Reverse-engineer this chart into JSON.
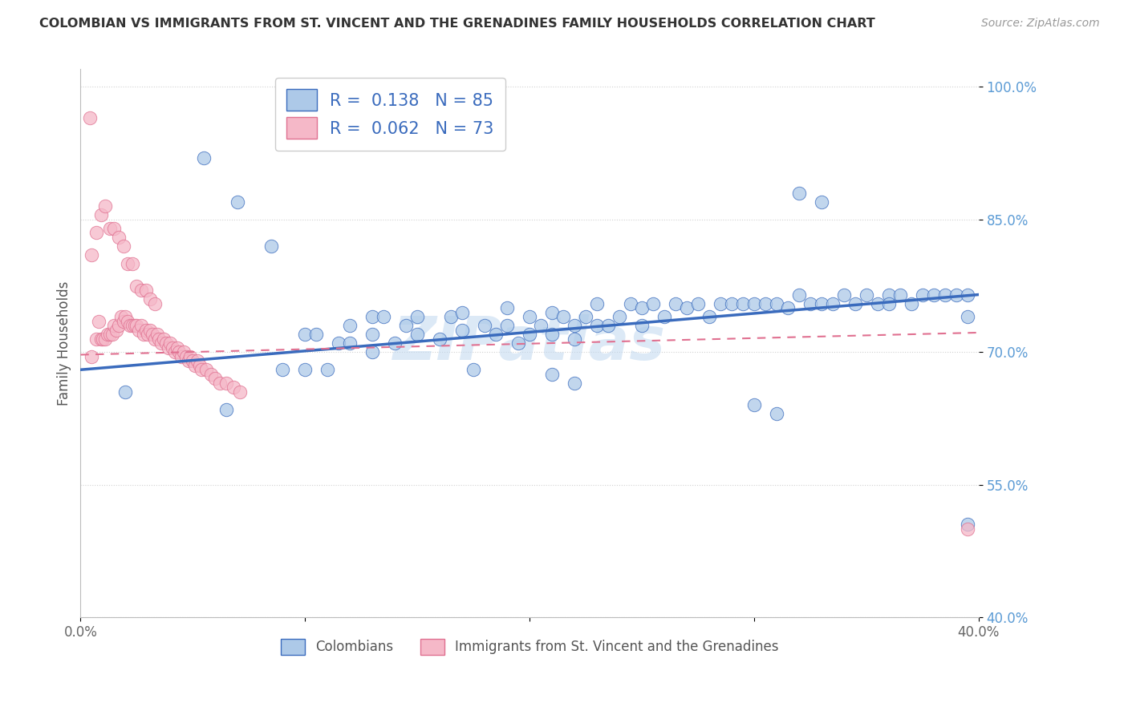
{
  "title": "COLOMBIAN VS IMMIGRANTS FROM ST. VINCENT AND THE GRENADINES FAMILY HOUSEHOLDS CORRELATION CHART",
  "source": "Source: ZipAtlas.com",
  "ylabel": "Family Households",
  "xlim": [
    0.0,
    0.4
  ],
  "ylim": [
    0.4,
    1.02
  ],
  "ytick_labels": [
    "40.0%",
    "55.0%",
    "70.0%",
    "85.0%",
    "100.0%"
  ],
  "ytick_values": [
    0.4,
    0.55,
    0.7,
    0.85,
    1.0
  ],
  "legend1_label": "Colombians",
  "legend2_label": "Immigrants from St. Vincent and the Grenadines",
  "R_blue": 0.138,
  "N_blue": 85,
  "R_pink": 0.062,
  "N_pink": 73,
  "blue_color": "#adc9e8",
  "pink_color": "#f5b8c8",
  "line_blue": "#3a6bbd",
  "line_pink": "#e07090",
  "watermark": "ZIPatlas",
  "blue_scatter_x": [
    0.02,
    0.055,
    0.07,
    0.085,
    0.09,
    0.1,
    0.1,
    0.105,
    0.11,
    0.115,
    0.12,
    0.12,
    0.13,
    0.13,
    0.13,
    0.135,
    0.14,
    0.145,
    0.15,
    0.15,
    0.16,
    0.165,
    0.17,
    0.17,
    0.18,
    0.185,
    0.19,
    0.19,
    0.195,
    0.2,
    0.2,
    0.205,
    0.21,
    0.21,
    0.215,
    0.22,
    0.22,
    0.225,
    0.23,
    0.23,
    0.235,
    0.24,
    0.245,
    0.25,
    0.25,
    0.255,
    0.26,
    0.265,
    0.27,
    0.275,
    0.28,
    0.285,
    0.29,
    0.295,
    0.3,
    0.305,
    0.31,
    0.315,
    0.32,
    0.325,
    0.33,
    0.335,
    0.34,
    0.345,
    0.35,
    0.355,
    0.36,
    0.36,
    0.365,
    0.37,
    0.375,
    0.38,
    0.385,
    0.39,
    0.395,
    0.3,
    0.31,
    0.21,
    0.22,
    0.175,
    0.065,
    0.32,
    0.33,
    0.395,
    0.395
  ],
  "blue_scatter_y": [
    0.655,
    0.92,
    0.87,
    0.82,
    0.68,
    0.72,
    0.68,
    0.72,
    0.68,
    0.71,
    0.73,
    0.71,
    0.74,
    0.72,
    0.7,
    0.74,
    0.71,
    0.73,
    0.72,
    0.74,
    0.715,
    0.74,
    0.725,
    0.745,
    0.73,
    0.72,
    0.73,
    0.75,
    0.71,
    0.72,
    0.74,
    0.73,
    0.745,
    0.72,
    0.74,
    0.73,
    0.715,
    0.74,
    0.73,
    0.755,
    0.73,
    0.74,
    0.755,
    0.75,
    0.73,
    0.755,
    0.74,
    0.755,
    0.75,
    0.755,
    0.74,
    0.755,
    0.755,
    0.755,
    0.755,
    0.755,
    0.755,
    0.75,
    0.765,
    0.755,
    0.755,
    0.755,
    0.765,
    0.755,
    0.765,
    0.755,
    0.765,
    0.755,
    0.765,
    0.755,
    0.765,
    0.765,
    0.765,
    0.765,
    0.765,
    0.64,
    0.63,
    0.675,
    0.665,
    0.68,
    0.635,
    0.88,
    0.87,
    0.505,
    0.74
  ],
  "pink_scatter_x": [
    0.005,
    0.007,
    0.008,
    0.009,
    0.01,
    0.011,
    0.012,
    0.013,
    0.014,
    0.015,
    0.016,
    0.017,
    0.018,
    0.019,
    0.02,
    0.021,
    0.022,
    0.023,
    0.024,
    0.025,
    0.026,
    0.027,
    0.028,
    0.029,
    0.03,
    0.031,
    0.032,
    0.033,
    0.034,
    0.035,
    0.036,
    0.037,
    0.038,
    0.039,
    0.04,
    0.041,
    0.042,
    0.043,
    0.044,
    0.045,
    0.046,
    0.047,
    0.048,
    0.049,
    0.05,
    0.051,
    0.052,
    0.053,
    0.054,
    0.056,
    0.058,
    0.06,
    0.062,
    0.065,
    0.068,
    0.071,
    0.005,
    0.007,
    0.009,
    0.011,
    0.013,
    0.015,
    0.017,
    0.019,
    0.021,
    0.023,
    0.025,
    0.027,
    0.029,
    0.031,
    0.033,
    0.004,
    0.395
  ],
  "pink_scatter_y": [
    0.695,
    0.715,
    0.735,
    0.715,
    0.715,
    0.715,
    0.72,
    0.72,
    0.72,
    0.73,
    0.725,
    0.73,
    0.74,
    0.735,
    0.74,
    0.735,
    0.73,
    0.73,
    0.73,
    0.73,
    0.725,
    0.73,
    0.72,
    0.725,
    0.72,
    0.725,
    0.72,
    0.715,
    0.72,
    0.715,
    0.71,
    0.715,
    0.71,
    0.705,
    0.71,
    0.705,
    0.7,
    0.705,
    0.7,
    0.695,
    0.7,
    0.695,
    0.69,
    0.695,
    0.69,
    0.685,
    0.69,
    0.685,
    0.68,
    0.68,
    0.675,
    0.67,
    0.665,
    0.665,
    0.66,
    0.655,
    0.81,
    0.835,
    0.855,
    0.865,
    0.84,
    0.84,
    0.83,
    0.82,
    0.8,
    0.8,
    0.775,
    0.77,
    0.77,
    0.76,
    0.755,
    0.965,
    0.5
  ],
  "blue_line_x0": 0.0,
  "blue_line_y0": 0.68,
  "blue_line_x1": 0.4,
  "blue_line_y1": 0.765,
  "pink_line_x0": 0.0,
  "pink_line_y0": 0.697,
  "pink_line_x1": 0.4,
  "pink_line_y1": 0.722
}
